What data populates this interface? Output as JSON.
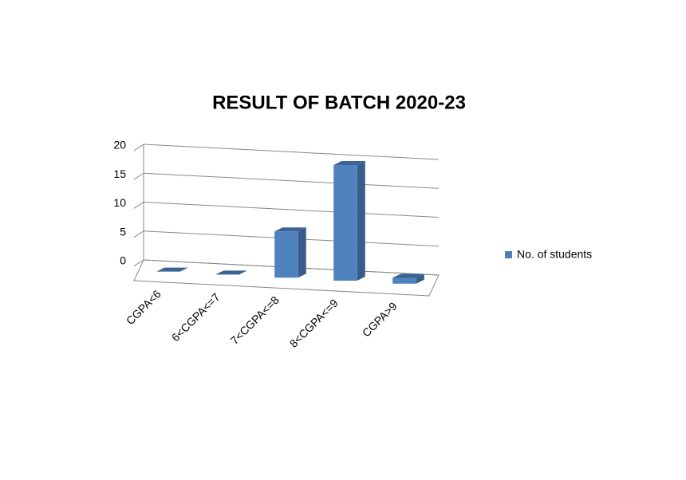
{
  "chart_data": {
    "type": "bar3d",
    "title": "RESULT OF BATCH 2020-23",
    "categories": [
      "CGPA<6",
      "6<CGPA<=7",
      "7<CGPA<=8",
      "8<CGPA<=9",
      "CGPA>9"
    ],
    "series": [
      {
        "name": "No. of students",
        "color": "#4f81bd",
        "values": [
          0,
          0,
          8,
          20,
          1
        ]
      }
    ],
    "ylim": [
      0,
      20
    ],
    "yticks": [
      0,
      5,
      10,
      15,
      20
    ],
    "grid": true,
    "legend": "right"
  }
}
